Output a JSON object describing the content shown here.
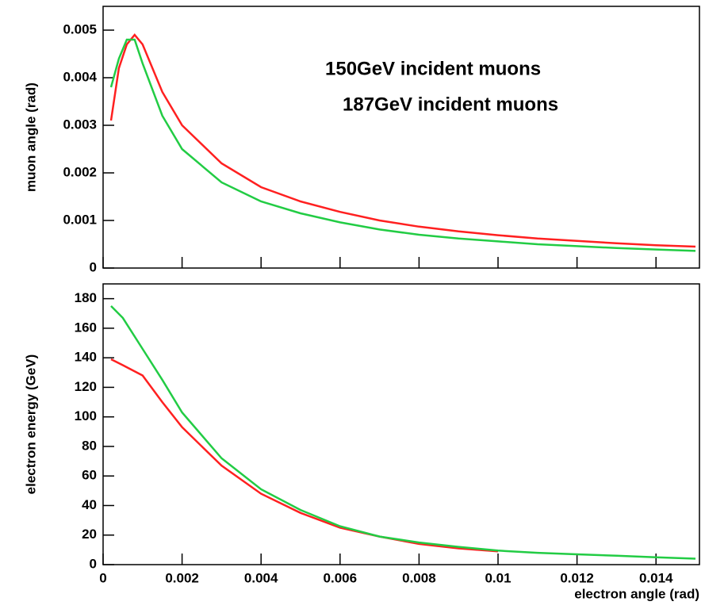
{
  "chart_data": [
    {
      "type": "line",
      "ylabel": "muon angle (rad)",
      "show_xtick_labels": false,
      "x": [
        0.0002,
        0.0004,
        0.0006,
        0.0008,
        0.001,
        0.0015,
        0.002,
        0.003,
        0.004,
        0.005,
        0.006,
        0.007,
        0.008,
        0.009,
        0.01,
        0.011,
        0.012,
        0.013,
        0.014,
        0.015
      ],
      "series": [
        {
          "name": "150GeV incident muons",
          "color": "#ff2020",
          "values": [
            0.0031,
            0.0042,
            0.0047,
            0.0049,
            0.0047,
            0.0037,
            0.003,
            0.0022,
            0.0017,
            0.0014,
            0.00118,
            0.001,
            0.00087,
            0.00077,
            0.00069,
            0.00062,
            0.00057,
            0.00052,
            0.00048,
            0.00045
          ]
        },
        {
          "name": "187GeV incident muons",
          "color": "#22cc44",
          "values": [
            0.0038,
            0.0044,
            0.0048,
            0.0048,
            0.0043,
            0.0032,
            0.0025,
            0.0018,
            0.0014,
            0.00115,
            0.00096,
            0.00081,
            0.0007,
            0.00062,
            0.00056,
            0.0005,
            0.00046,
            0.00042,
            0.00039,
            0.00036
          ]
        }
      ],
      "xlim": [
        0,
        0.0151
      ],
      "xticks": [
        0,
        0.002,
        0.004,
        0.006,
        0.008,
        0.01,
        0.012,
        0.014
      ],
      "ylim": [
        0,
        0.0055
      ],
      "yticks": [
        0,
        0.001,
        0.002,
        0.003,
        0.004,
        0.005
      ]
    },
    {
      "type": "line",
      "ylabel": "electron energy (GeV)",
      "xlabel": "electron angle (rad)",
      "show_xtick_labels": true,
      "x": [
        0.0002,
        0.0005,
        0.001,
        0.0015,
        0.002,
        0.003,
        0.004,
        0.005,
        0.006,
        0.007,
        0.008,
        0.009,
        0.01,
        0.011,
        0.012,
        0.013,
        0.014,
        0.015
      ],
      "series": [
        {
          "name": "150GeV incident muons",
          "color": "#ff2020",
          "values": [
            139,
            135,
            128,
            110,
            93,
            67,
            48,
            35,
            25,
            19,
            14,
            11,
            9,
            null,
            null,
            null,
            null,
            null
          ]
        },
        {
          "name": "187GeV incident muons",
          "color": "#22cc44",
          "values": [
            175,
            167,
            146,
            125,
            103,
            72,
            51,
            37,
            26,
            19,
            15,
            12,
            9.5,
            8,
            7,
            6,
            5,
            4
          ]
        }
      ],
      "xlim": [
        0,
        0.0151
      ],
      "xticks": [
        0,
        0.002,
        0.004,
        0.006,
        0.008,
        0.01,
        0.012,
        0.014
      ],
      "ylim": [
        0,
        190
      ],
      "yticks": [
        0,
        20,
        40,
        60,
        80,
        100,
        120,
        140,
        160,
        180
      ]
    }
  ]
}
